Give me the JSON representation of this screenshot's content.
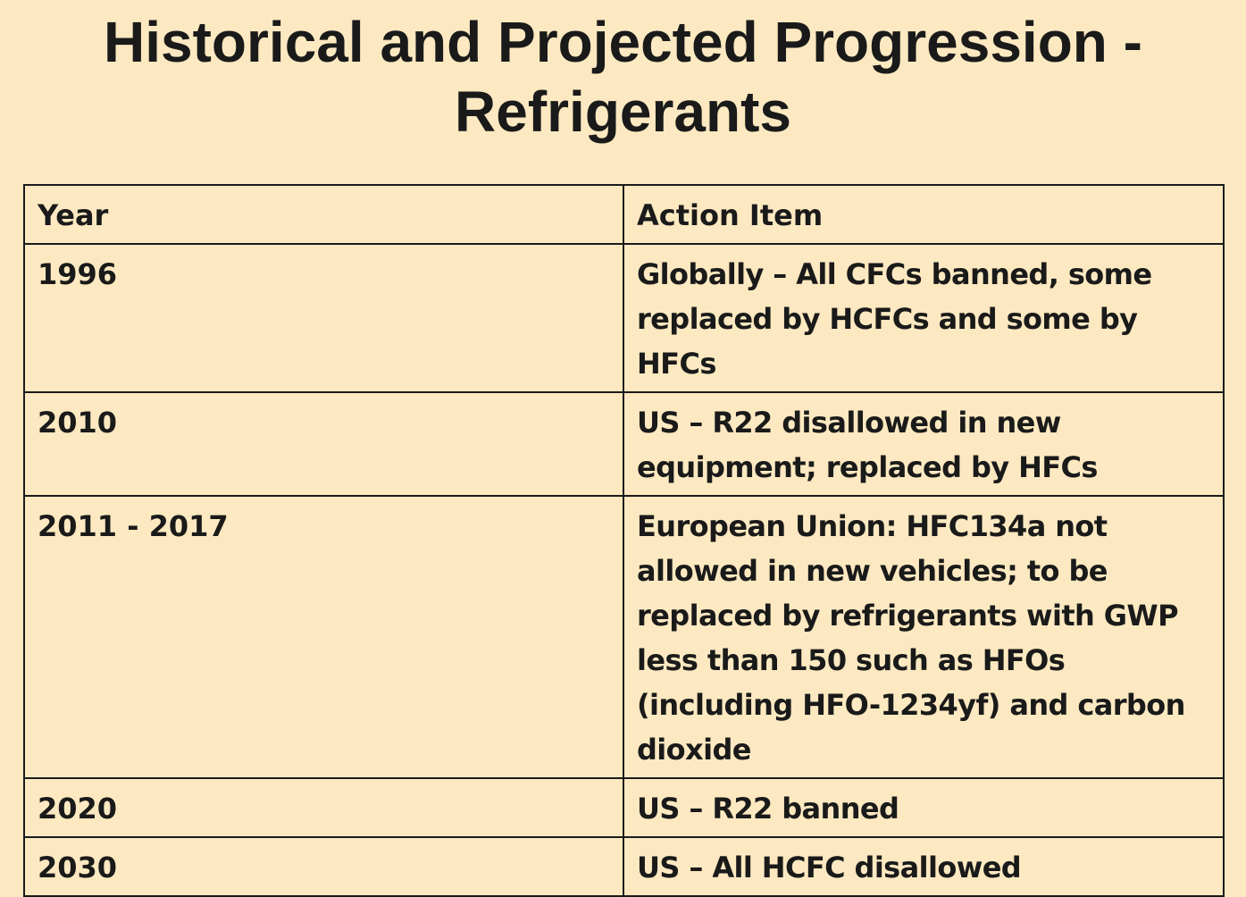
{
  "title": {
    "line1": "Historical and Projected Progression -",
    "line2": "Refrigerants"
  },
  "table": {
    "headers": {
      "year": "Year",
      "action": "Action Item"
    },
    "rows": [
      {
        "year": "1996",
        "action": "Globally – All CFCs banned, some replaced by HCFCs and some by HFCs"
      },
      {
        "year": "2010",
        "action": "US – R22 disallowed in new equipment; replaced by HFCs"
      },
      {
        "year": "2011 - 2017",
        "action": "European Union: HFC134a not allowed in new vehicles; to be replaced by refrigerants with GWP less than 150 such as HFOs (including HFO-1234yf) and carbon dioxide"
      },
      {
        "year": "2020",
        "action": "US – R22 banned"
      },
      {
        "year": "2030",
        "action": "US – All HCFC disallowed"
      }
    ]
  }
}
